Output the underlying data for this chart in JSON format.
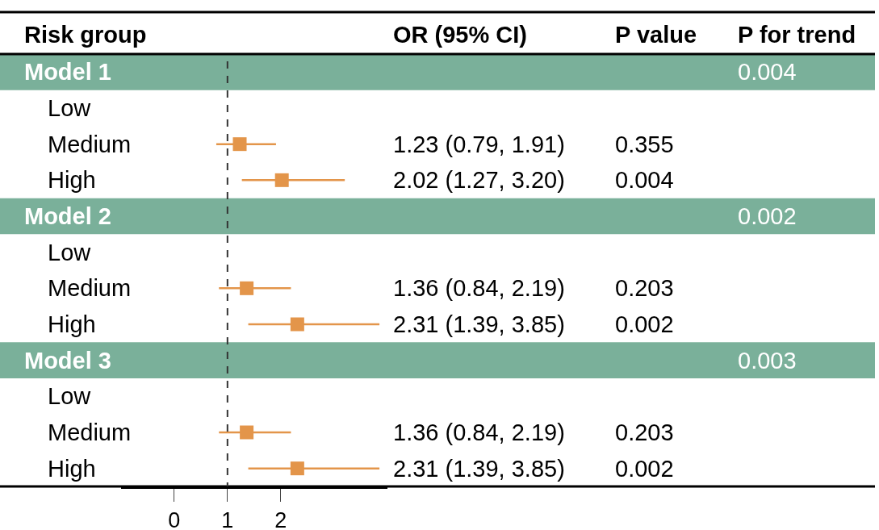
{
  "chart_data": {
    "type": "scatter",
    "orientation": "horizontal",
    "ylabel": "Risk group",
    "categories": [
      "Model 1",
      "Low",
      "Medium",
      "High",
      "Model 2",
      "Low",
      "Medium",
      "High",
      "Model 3",
      "Low",
      "Medium",
      "High"
    ],
    "values": [
      null,
      null,
      1.23,
      2.02,
      null,
      null,
      1.36,
      2.31,
      null,
      null,
      1.36,
      2.31
    ],
    "errors": [
      null,
      null,
      [
        0.79,
        1.91
      ],
      [
        1.27,
        3.2
      ],
      null,
      null,
      [
        0.84,
        2.19
      ],
      [
        1.39,
        3.85
      ],
      null,
      null,
      [
        0.84,
        2.19
      ],
      [
        1.39,
        3.85
      ]
    ],
    "value_labels": [
      null,
      null,
      "1.23 (0.79, 1.91)",
      "2.02 (1.27, 3.20)",
      null,
      null,
      "1.36 (0.84, 2.19)",
      "2.31 (1.39, 3.85)",
      null,
      null,
      "1.36 (0.84, 2.19)",
      "2.31 (1.39, 3.85)"
    ],
    "color": "#e3954a",
    "marker": "square",
    "xlim": [
      -1,
      4
    ],
    "xticks": [
      0,
      1,
      2
    ],
    "ref_lines": [
      {
        "axis": "x",
        "value": 1,
        "line_style": "dashed",
        "color": "#333333"
      }
    ],
    "bands": [
      {
        "axis": "y",
        "from": "Model 1",
        "to": "Model 1",
        "color": "#7ab09a"
      },
      {
        "axis": "y",
        "from": "Model 2",
        "to": "Model 2",
        "color": "#7ab09a"
      },
      {
        "axis": "y",
        "from": "Model 3",
        "to": "Model 3",
        "color": "#7ab09a"
      }
    ],
    "annotations": [
      "OR (95% CI)",
      "P value",
      "P for trend",
      "0.004",
      "0.355",
      "0.004",
      "0.002",
      "0.203",
      "0.002",
      "0.003",
      "0.203",
      "0.002"
    ],
    "grid": false,
    "legend": false
  }
}
